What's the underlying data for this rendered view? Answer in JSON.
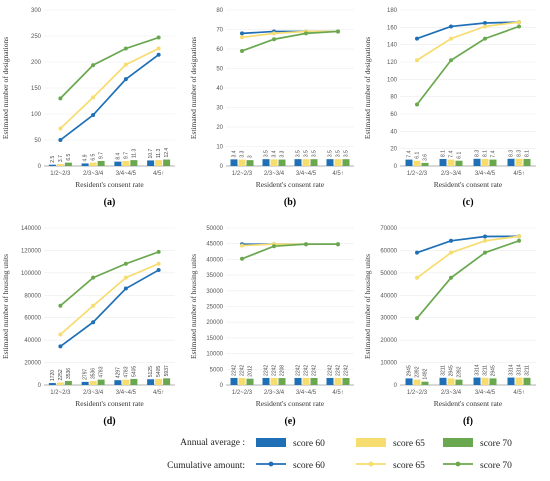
{
  "chart_data": [
    {
      "id": "a",
      "panel_label": "(a)",
      "type": "bar+line",
      "ylabel": "Estimated number of designations",
      "xlabel": "Resident's consent rate",
      "ylim": [
        0,
        300
      ],
      "yticks": [
        0,
        50,
        100,
        150,
        200,
        250,
        300
      ],
      "categories": [
        "1/2~2/3",
        "2/3~3/4",
        "3/4~4/5",
        "4/5↑"
      ],
      "bars": [
        {
          "name": "score 60",
          "values": [
            2.5,
            4.9,
            8.4,
            10.7
          ],
          "labels": [
            "2.5",
            "4.9",
            "8.4",
            "10.7"
          ]
        },
        {
          "name": "score 65",
          "values": [
            3.7,
            6.5,
            9.7,
            11.3
          ],
          "labels": [
            "3.7",
            "6.5",
            "9.7",
            "11.3"
          ]
        },
        {
          "name": "score 70",
          "values": [
            6.5,
            9.7,
            11.3,
            12.4
          ],
          "labels": [
            "6.5",
            "9.7",
            "11.3",
            "12.4"
          ]
        }
      ],
      "lines": [
        {
          "name": "score 60",
          "values": [
            50,
            98,
            167,
            214
          ]
        },
        {
          "name": "score 65",
          "values": [
            72,
            132,
            195,
            226
          ]
        },
        {
          "name": "score 70",
          "values": [
            130,
            194,
            226,
            247
          ]
        }
      ]
    },
    {
      "id": "b",
      "panel_label": "(b)",
      "type": "bar+line",
      "ylabel": "Estimated number of designations",
      "xlabel": "Resident's consent rate",
      "ylim": [
        0,
        80
      ],
      "yticks": [
        0,
        10,
        20,
        30,
        40,
        50,
        60,
        70,
        80
      ],
      "categories": [
        "1/2~2/3",
        "2/3~3/4",
        "3/4~4/5",
        "4/5↑"
      ],
      "bars": [
        {
          "name": "score 60",
          "values": [
            3.4,
            3.5,
            3.5,
            3.5
          ],
          "labels": [
            "3.4",
            "3.5",
            "3.5",
            "3.5"
          ]
        },
        {
          "name": "score 65",
          "values": [
            3.3,
            3.4,
            3.5,
            3.5
          ],
          "labels": [
            "3.3",
            "3.4",
            "3.5",
            "3.5"
          ]
        },
        {
          "name": "score 70",
          "values": [
            3,
            3.3,
            3.5,
            3.5
          ],
          "labels": [
            "3",
            "3.3",
            "3.5",
            "3.5"
          ]
        }
      ],
      "lines": [
        {
          "name": "score 60",
          "values": [
            68,
            69,
            69,
            69
          ]
        },
        {
          "name": "score 65",
          "values": [
            66,
            68,
            69,
            69
          ]
        },
        {
          "name": "score 70",
          "values": [
            59,
            65,
            68,
            69
          ]
        }
      ]
    },
    {
      "id": "c",
      "panel_label": "(c)",
      "type": "bar+line",
      "ylabel": "Estimated number of designations",
      "xlabel": "Resident's consent rate",
      "ylim": [
        0,
        180
      ],
      "yticks": [
        0,
        20,
        40,
        60,
        80,
        100,
        120,
        140,
        160,
        180
      ],
      "categories": [
        "1/2~2/3",
        "2/3~3/4",
        "3/4~4/5",
        "4/5↑"
      ],
      "bars": [
        {
          "name": "score 60",
          "values": [
            7.4,
            8.1,
            8.3,
            8.3
          ],
          "labels": [
            "7.4",
            "8.1",
            "8.3",
            "8.3"
          ]
        },
        {
          "name": "score 65",
          "values": [
            6.1,
            7.4,
            8.1,
            8.3
          ],
          "labels": [
            "6.1",
            "7.4",
            "8.1",
            "8.3"
          ]
        },
        {
          "name": "score 70",
          "values": [
            3.6,
            6.1,
            7.4,
            8.1
          ],
          "labels": [
            "3.6",
            "6.1",
            "7.4",
            "8.1"
          ]
        }
      ],
      "lines": [
        {
          "name": "score 60",
          "values": [
            147,
            161,
            165,
            166
          ]
        },
        {
          "name": "score 65",
          "values": [
            122,
            147,
            161,
            166
          ]
        },
        {
          "name": "score 70",
          "values": [
            71,
            122,
            147,
            161
          ]
        }
      ]
    },
    {
      "id": "d",
      "panel_label": "(d)",
      "type": "bar+line",
      "ylabel": "Estimated number of housing units",
      "xlabel": "Resident's consent rate",
      "ylim": [
        0,
        140000
      ],
      "yticks": [
        0,
        20000,
        40000,
        60000,
        80000,
        100000,
        120000,
        140000
      ],
      "categories": [
        "1/2~2/3",
        "2/3~3/4",
        "3/4~4/5",
        "4/5↑"
      ],
      "bars": [
        {
          "name": "score 60",
          "values": [
            1720,
            2797,
            4297,
            5125
          ],
          "labels": [
            "1720",
            "2797",
            "4297",
            "5125"
          ]
        },
        {
          "name": "score 65",
          "values": [
            2252,
            3536,
            4783,
            5405
          ],
          "labels": [
            "2252",
            "3536",
            "4783",
            "5405"
          ]
        },
        {
          "name": "score 70",
          "values": [
            3536,
            4783,
            5405,
            5937
          ],
          "labels": [
            "3536",
            "4783",
            "5405",
            "5937"
          ]
        }
      ],
      "lines": [
        {
          "name": "score 60",
          "values": [
            34400,
            56000,
            86000,
            102500
          ]
        },
        {
          "name": "score 65",
          "values": [
            45000,
            70700,
            95700,
            108100
          ]
        },
        {
          "name": "score 70",
          "values": [
            70700,
            95700,
            108100,
            118700
          ]
        }
      ]
    },
    {
      "id": "e",
      "panel_label": "(e)",
      "type": "bar+line",
      "ylabel": "Estimated number of housing units",
      "xlabel": "Resident's consent rate",
      "ylim": [
        0,
        50000
      ],
      "yticks": [
        0,
        5000,
        10000,
        15000,
        20000,
        25000,
        30000,
        35000,
        40000,
        45000,
        50000
      ],
      "categories": [
        "1/2~2/3",
        "2/3~3/4",
        "3/4~4/5",
        "4/5↑"
      ],
      "bars": [
        {
          "name": "score 60",
          "values": [
            2242,
            2242,
            2242,
            2242
          ],
          "labels": [
            "2242",
            "2242",
            "2242",
            "2242"
          ]
        },
        {
          "name": "score 65",
          "values": [
            2242,
            2242,
            2242,
            2242
          ],
          "labels": [
            "2242",
            "2242",
            "2242",
            "2242"
          ]
        },
        {
          "name": "score 70",
          "values": [
            2012,
            2208,
            2242,
            2242
          ],
          "labels": [
            "2012",
            "2208",
            "2242",
            "2242"
          ]
        }
      ],
      "lines": [
        {
          "name": "score 60",
          "values": [
            44840,
            44840,
            44840,
            44840
          ]
        },
        {
          "name": "score 65",
          "values": [
            44400,
            44840,
            44840,
            44840
          ]
        },
        {
          "name": "score 70",
          "values": [
            40200,
            44200,
            44840,
            44840
          ]
        }
      ]
    },
    {
      "id": "f",
      "panel_label": "(f)",
      "type": "bar+line",
      "ylabel": "Estimated number of housing units",
      "xlabel": "Resident's consent rate",
      "ylim": [
        0,
        70000
      ],
      "yticks": [
        0,
        10000,
        20000,
        30000,
        40000,
        50000,
        60000,
        70000
      ],
      "categories": [
        "1/2~2/3",
        "2/3~3/4",
        "3/4~4/5",
        "4/5↑"
      ],
      "bars": [
        {
          "name": "score 60",
          "values": [
            2945,
            3211,
            3314,
            3314
          ],
          "labels": [
            "2945",
            "3211",
            "3314",
            "3314"
          ]
        },
        {
          "name": "score 65",
          "values": [
            2392,
            2945,
            3211,
            3314
          ],
          "labels": [
            "2392",
            "2945",
            "3211",
            "3314"
          ]
        },
        {
          "name": "score 70",
          "values": [
            1492,
            2392,
            2945,
            3211
          ],
          "labels": [
            "1492",
            "2392",
            "2945",
            "3211"
          ]
        }
      ],
      "lines": [
        {
          "name": "score 60",
          "values": [
            59000,
            64300,
            66200,
            66300
          ]
        },
        {
          "name": "score 65",
          "values": [
            47800,
            59000,
            64300,
            66300
          ]
        },
        {
          "name": "score 70",
          "values": [
            29800,
            47800,
            59000,
            64300
          ]
        }
      ]
    }
  ],
  "series_colors": {
    "score 60": "#1f6fb6",
    "score 65": "#f7dc6f",
    "score 70": "#6aa84f"
  },
  "legend": {
    "annual_label": "Annual average :",
    "cumulative_label": "Cumulative amount:",
    "items": [
      "score 60",
      "score 65",
      "score 70"
    ]
  }
}
